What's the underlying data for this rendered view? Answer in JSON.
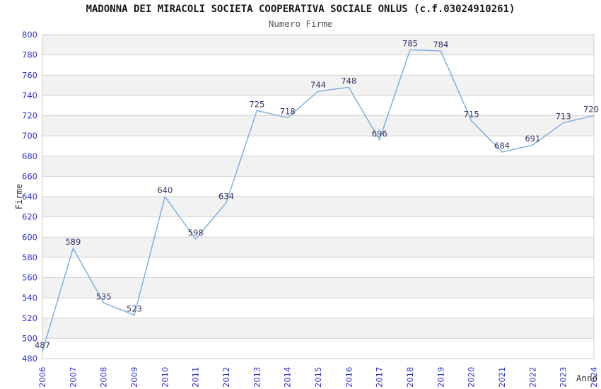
{
  "chart_data": {
    "type": "line",
    "title": "MADONNA DEI MIRACOLI SOCIETA COOPERATIVA SOCIALE ONLUS (c.f.03024910261)",
    "subtitle": "Numero Firme",
    "xlabel": "Anno",
    "ylabel": "Firme",
    "categories": [
      "2006",
      "2007",
      "2008",
      "2009",
      "2010",
      "2011",
      "2012",
      "2013",
      "2014",
      "2015",
      "2016",
      "2017",
      "2018",
      "2019",
      "2020",
      "2021",
      "2022",
      "2023",
      "2024"
    ],
    "values": [
      487,
      589,
      535,
      523,
      640,
      598,
      634,
      725,
      718,
      744,
      748,
      696,
      785,
      784,
      715,
      684,
      691,
      713,
      720
    ],
    "ylim": [
      480,
      800
    ],
    "ytick_step": 20,
    "grid": "horizontal-bands-alternating",
    "legend": "none",
    "data_labels": "shown above each point",
    "xtick_rotation": 90,
    "colors": {
      "line": "#7aaade",
      "tick_label": "#3232cd",
      "data_label": "#333366",
      "band_fill": "#f2f2f2",
      "grid_line": "#d2d2d2",
      "plot_border": "#cccccc",
      "title_text": "#1a1a1a",
      "subtitle_text": "#575757",
      "axis_title_text": "#333333",
      "background": "#ffffff"
    }
  }
}
